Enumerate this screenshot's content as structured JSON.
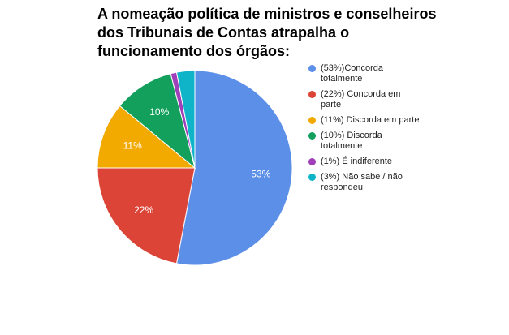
{
  "chart_data": {
    "type": "pie",
    "title": "A nomeação política de ministros e conselheiros dos Tribunais de Contas atrapalha o funcionamento dos órgãos:",
    "legend_position": "right",
    "slices": [
      {
        "name": "(53%)Concorda totalmente",
        "value": 53,
        "label": "53%",
        "color": "#5b8fe8"
      },
      {
        "name": "(22%) Concorda em parte",
        "value": 22,
        "label": "22%",
        "color": "#dc4437"
      },
      {
        "name": "(11%) Discorda em parte",
        "value": 11,
        "label": "11%",
        "color": "#f2a900"
      },
      {
        "name": "(10%) Discorda totalmente",
        "value": 10,
        "label": "10%",
        "color": "#12a05c"
      },
      {
        "name": "(1%) É indiferente",
        "value": 1,
        "label": "",
        "color": "#a040b8"
      },
      {
        "name": "(3%) Não sabe / não respondeu",
        "value": 3,
        "label": "",
        "color": "#10b4c8"
      }
    ]
  }
}
